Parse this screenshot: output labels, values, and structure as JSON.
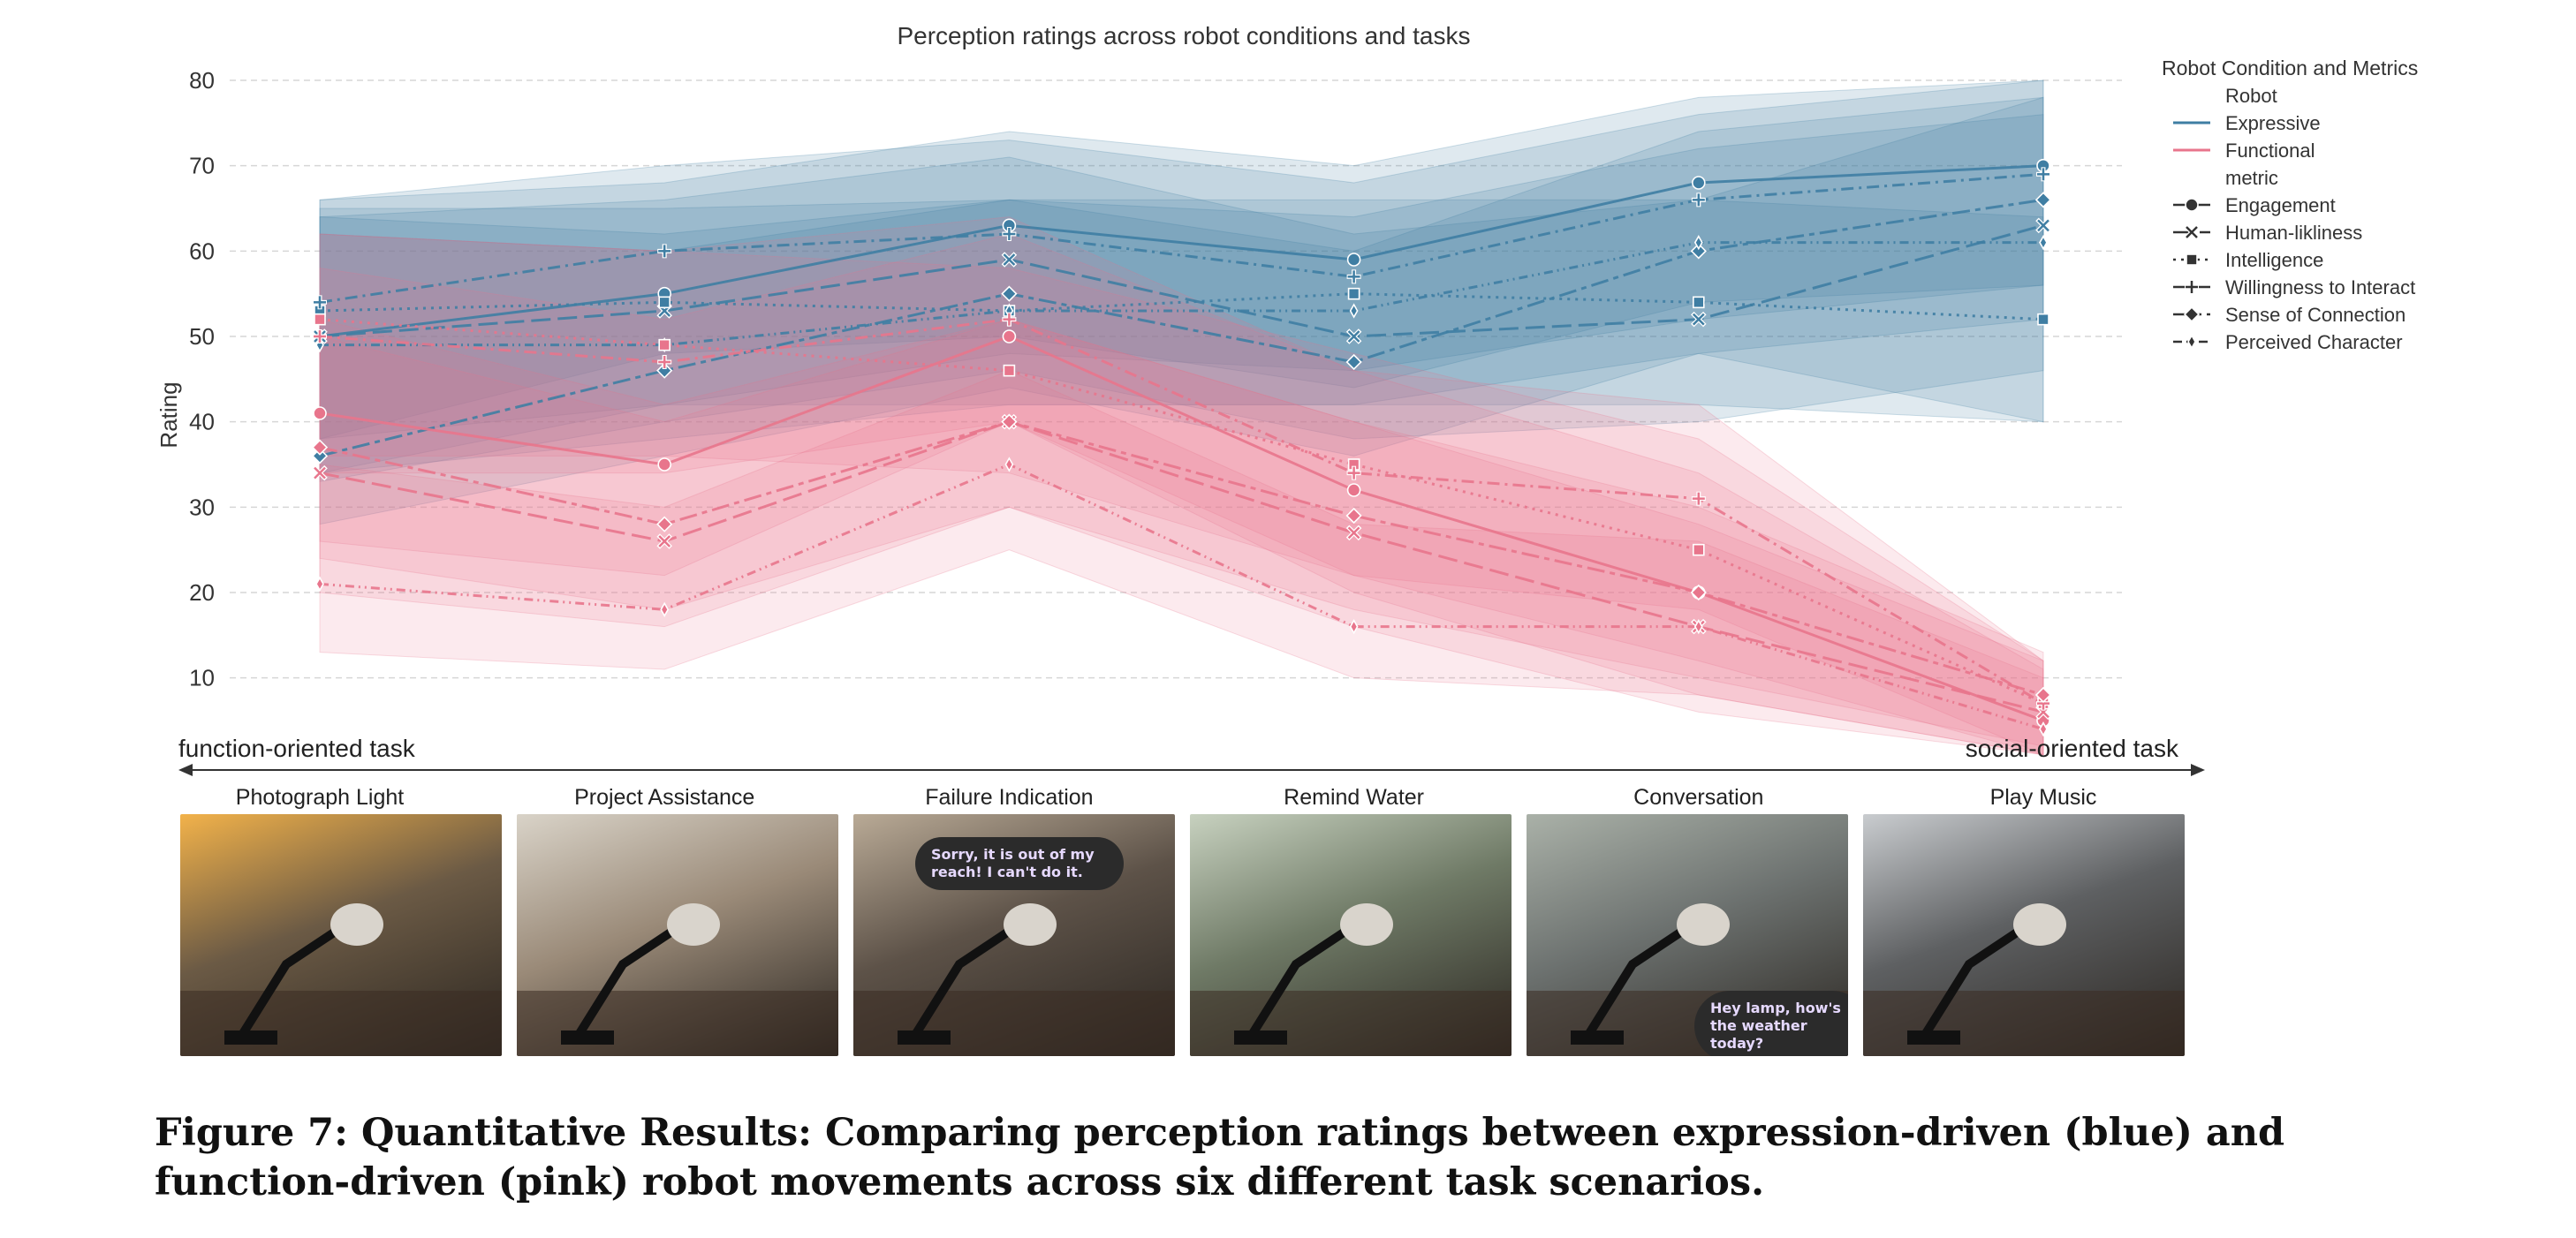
{
  "chart_data": {
    "type": "line",
    "title": "Perception ratings across robot conditions and tasks",
    "xlabel": "",
    "ylabel": "Rating",
    "ylim": [
      2,
      83
    ],
    "yticks": [
      10,
      20,
      30,
      40,
      50,
      60,
      70,
      80
    ],
    "grid": true,
    "legend_position": "upper-right, outside plot",
    "categories": [
      "Photograph Light",
      "Project Assistance",
      "Failure Indication",
      "Remind Water",
      "Conversation",
      "Play Music"
    ],
    "legend": {
      "title": "Robot Condition and Metrics",
      "group_robot": "Robot",
      "group_metric": "metric",
      "robots": [
        "Expressive",
        "Functional"
      ],
      "metrics": [
        "Engagement",
        "Human-likliness",
        "Intelligence",
        "Willingness to Interact",
        "Sense of Connection",
        "Perceived Character"
      ]
    },
    "colors": {
      "Expressive": "#3f7ea3",
      "Functional": "#e8758c"
    },
    "series": [
      {
        "robot": "Expressive",
        "metric": "Engagement",
        "marker": "circle",
        "values": [
          50,
          55,
          63,
          59,
          68,
          70
        ],
        "band": [
          [
            34,
            66
          ],
          [
            42,
            68
          ],
          [
            48,
            74
          ],
          [
            46,
            70
          ],
          [
            52,
            78
          ],
          [
            56,
            80
          ]
        ]
      },
      {
        "robot": "Expressive",
        "metric": "Human-likliness",
        "marker": "x",
        "values": [
          50,
          53,
          59,
          50,
          52,
          63
        ],
        "band": [
          [
            33,
            64
          ],
          [
            40,
            66
          ],
          [
            46,
            71
          ],
          [
            38,
            62
          ],
          [
            40,
            66
          ],
          [
            46,
            78
          ]
        ]
      },
      {
        "robot": "Expressive",
        "metric": "Intelligence",
        "marker": "square",
        "values": [
          53,
          54,
          53,
          55,
          54,
          52
        ],
        "band": [
          [
            38,
            65
          ],
          [
            42,
            65
          ],
          [
            42,
            66
          ],
          [
            42,
            66
          ],
          [
            42,
            66
          ],
          [
            40,
            64
          ]
        ]
      },
      {
        "robot": "Expressive",
        "metric": "Willingness to Interact",
        "marker": "plus",
        "values": [
          54,
          60,
          62,
          57,
          66,
          69
        ],
        "band": [
          [
            38,
            66
          ],
          [
            48,
            70
          ],
          [
            50,
            73
          ],
          [
            44,
            68
          ],
          [
            54,
            76
          ],
          [
            56,
            80
          ]
        ]
      },
      {
        "robot": "Expressive",
        "metric": "Sense of Connection",
        "marker": "diamond",
        "values": [
          36,
          46,
          55,
          47,
          60,
          66
        ],
        "band": [
          [
            28,
            62
          ],
          [
            36,
            60
          ],
          [
            44,
            66
          ],
          [
            36,
            60
          ],
          [
            48,
            74
          ],
          [
            52,
            78
          ]
        ]
      },
      {
        "robot": "Expressive",
        "metric": "Perceived Character",
        "marker": "thin-diamond",
        "values": [
          49,
          49,
          53,
          53,
          61,
          61
        ],
        "band": [
          [
            34,
            64
          ],
          [
            38,
            62
          ],
          [
            42,
            66
          ],
          [
            42,
            64
          ],
          [
            48,
            72
          ],
          [
            40,
            76
          ]
        ]
      },
      {
        "robot": "Functional",
        "metric": "Engagement",
        "marker": "circle",
        "values": [
          41,
          35,
          50,
          32,
          20,
          5
        ],
        "band": [
          [
            26,
            58
          ],
          [
            22,
            52
          ],
          [
            40,
            62
          ],
          [
            20,
            46
          ],
          [
            8,
            34
          ],
          [
            1,
            11
          ]
        ]
      },
      {
        "robot": "Functional",
        "metric": "Human-likliness",
        "marker": "x",
        "values": [
          34,
          26,
          40,
          27,
          16,
          6
        ],
        "band": [
          [
            20,
            50
          ],
          [
            16,
            40
          ],
          [
            30,
            52
          ],
          [
            16,
            40
          ],
          [
            6,
            28
          ],
          [
            1,
            12
          ]
        ]
      },
      {
        "robot": "Functional",
        "metric": "Intelligence",
        "marker": "square",
        "values": [
          52,
          49,
          46,
          35,
          25,
          7
        ],
        "band": [
          [
            36,
            62
          ],
          [
            36,
            60
          ],
          [
            34,
            58
          ],
          [
            22,
            48
          ],
          [
            12,
            38
          ],
          [
            1,
            12
          ]
        ]
      },
      {
        "robot": "Functional",
        "metric": "Willingness to Interact",
        "marker": "plus",
        "values": [
          50,
          47,
          52,
          34,
          31,
          7
        ],
        "band": [
          [
            34,
            62
          ],
          [
            34,
            60
          ],
          [
            40,
            64
          ],
          [
            22,
            46
          ],
          [
            18,
            42
          ],
          [
            1,
            12
          ]
        ]
      },
      {
        "robot": "Functional",
        "metric": "Sense of Connection",
        "marker": "diamond",
        "values": [
          37,
          28,
          40,
          29,
          20,
          8
        ],
        "band": [
          [
            24,
            52
          ],
          [
            18,
            42
          ],
          [
            30,
            52
          ],
          [
            18,
            40
          ],
          [
            10,
            30
          ],
          [
            2,
            13
          ]
        ]
      },
      {
        "robot": "Functional",
        "metric": "Perceived Character",
        "marker": "thin-diamond",
        "values": [
          21,
          18,
          35,
          16,
          16,
          4
        ],
        "band": [
          [
            13,
            35
          ],
          [
            11,
            30
          ],
          [
            25,
            46
          ],
          [
            10,
            28
          ],
          [
            8,
            26
          ],
          [
            1,
            10
          ]
        ]
      }
    ],
    "task_axis": {
      "left_label": "function-oriented task",
      "right_label": "social-oriented task"
    }
  },
  "photos": [
    {
      "label": "Photograph Light",
      "bg": "#6b5a45",
      "accent": "#f2b24a",
      "bubble": ""
    },
    {
      "label": "Project Assistance",
      "bg": "#9a8a78",
      "accent": "#d9d3c8",
      "bubble": ""
    },
    {
      "label": "Failure Indication",
      "bg": "#5d5248",
      "accent": "#b9aa96",
      "bubble": "Sorry, it is out of my reach! I can't do it."
    },
    {
      "label": "Remind Water",
      "bg": "#6f7a66",
      "accent": "#c7d1bf",
      "bubble": ""
    },
    {
      "label": "Conversation",
      "bg": "#6d7270",
      "accent": "#aab1a8",
      "bubble": "Hey lamp, how's the weather today?"
    },
    {
      "label": "Play Music",
      "bg": "#5e6062",
      "accent": "#c9cccf",
      "bubble": ""
    }
  ],
  "caption": "Figure 7: Quantitative Results: Comparing perception ratings between expression-driven (blue) and function-driven (pink) robot movements across six different task scenarios."
}
